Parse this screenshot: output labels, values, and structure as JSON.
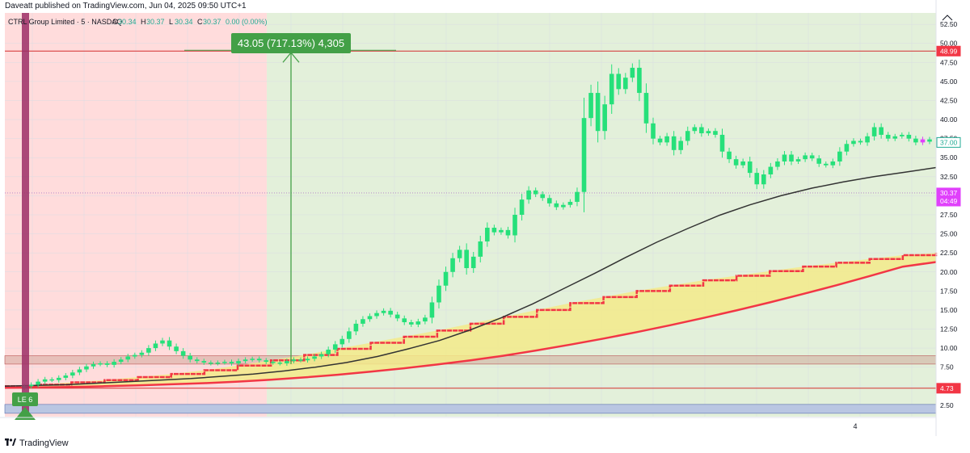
{
  "header": {
    "published": "Daveatt published on TradingView.com, Jun 04, 2025 09:50 UTC+1"
  },
  "footer": {
    "logo_icon": "tradingview-logo-icon",
    "brand": "TradingView"
  },
  "chart_data": {
    "type": "candlestick",
    "symbol_title": "CTRL Group Limited · 5 · NASDAQ",
    "ohlc_legend": {
      "O": "30.34",
      "H": "30.37",
      "L": "30.34",
      "C": "30.37",
      "change": "0.00 (0.00%)"
    },
    "y_axis": {
      "min": 1.0,
      "max": 54.0,
      "ticks": [
        "2.50",
        "5.00",
        "7.50",
        "10.00",
        "12.50",
        "15.00",
        "17.50",
        "20.00",
        "22.50",
        "25.00",
        "27.50",
        "30.00",
        "32.50",
        "35.00",
        "37.50",
        "40.00",
        "42.50",
        "45.00",
        "47.50",
        "50.00",
        "52.50"
      ]
    },
    "x_axis": {
      "labels": [
        "4"
      ]
    },
    "price_labels": [
      {
        "text": "48.99",
        "value": 48.99,
        "color": "#f23645"
      },
      {
        "text": "37.00",
        "value": 37.0,
        "color": "#ffffff",
        "border": "#22ab94",
        "text_color": "#22ab94"
      },
      {
        "text": "30.37",
        "value": 30.37,
        "color": "#e040fb"
      },
      {
        "text": "04:49",
        "value": 29.3,
        "color": "#e040fb"
      },
      {
        "text": "4.73",
        "value": 4.73,
        "color": "#f23645"
      }
    ],
    "measure_label": "43.05 (717.13%) 4,305",
    "entry_label": "LE 6",
    "colors": {
      "up": "#26e07a",
      "down": "#26e07a",
      "magenta": "#e040fb",
      "bg_red": "#ffdcdc",
      "bg_green": "#e3f0da",
      "ema": "#333333",
      "ribbon_fill": "#f3ea8a",
      "ribbon_edge": "#f23645"
    },
    "zones": [
      {
        "name": "resistance-line",
        "value": 48.99
      },
      {
        "name": "support-band-top",
        "value": 9.0
      },
      {
        "name": "support-band-bottom",
        "value": 7.9
      },
      {
        "name": "stop-line",
        "value": 4.73
      }
    ],
    "closes": [
      5.0,
      5.2,
      5.6,
      5.9,
      5.8,
      6.1,
      6.4,
      6.8,
      7.2,
      7.6,
      7.9,
      8.0,
      7.8,
      8.2,
      8.5,
      8.9,
      9.1,
      9.4,
      10.0,
      10.6,
      11.0,
      10.2,
      9.6,
      9.0,
      8.5,
      8.3,
      8.1,
      8.0,
      8.1,
      8.2,
      8.0,
      8.3,
      8.5,
      8.6,
      8.4,
      8.2,
      8.1,
      8.0,
      8.3,
      8.5,
      8.4,
      8.6,
      8.9,
      9.2,
      9.8,
      10.5,
      11.2,
      12.2,
      13.2,
      13.8,
      14.2,
      14.6,
      14.9,
      14.4,
      13.9,
      13.4,
      13.1,
      13.5,
      14.0,
      16.0,
      18.2,
      20.0,
      21.8,
      22.9,
      20.5,
      22.0,
      24.0,
      25.8,
      25.2,
      25.5,
      24.8,
      27.5,
      29.5,
      30.7,
      30.2,
      29.7,
      29.0,
      28.5,
      28.8,
      29.2,
      30.5,
      40.2,
      43.5,
      38.5,
      42.0,
      46.0,
      44.0,
      45.5,
      46.8,
      43.5,
      39.5,
      37.5,
      37.0,
      37.8,
      36.0,
      37.2,
      38.5,
      39.0,
      38.2,
      38.5,
      38.0,
      35.8,
      34.8,
      34.0,
      34.5,
      33.0,
      31.5,
      32.8,
      33.8,
      34.5,
      35.4,
      34.5,
      34.8,
      35.3,
      34.9,
      34.2,
      34.0,
      34.5,
      35.8,
      36.8,
      37.2,
      37.0,
      37.8,
      39.0,
      38.0,
      37.5,
      37.8,
      38.0,
      37.5,
      37.0,
      37.4,
      37.1
    ],
    "ema_values": [
      5.0,
      5.1,
      5.2,
      5.4,
      5.6,
      5.8,
      6.0,
      6.3,
      6.6,
      7.0,
      7.5,
      8.1,
      8.9,
      9.9,
      11.0,
      12.4,
      14.0,
      15.8,
      17.8,
      19.8,
      21.9,
      23.9,
      25.7,
      27.4,
      28.8,
      30.0,
      31.0,
      31.8,
      32.5,
      33.1,
      33.7
    ],
    "ribbon_upper": [
      5.0,
      5.2,
      5.5,
      5.8,
      6.2,
      6.6,
      7.1,
      7.7,
      8.4,
      9.1,
      9.9,
      10.7,
      11.5,
      12.3,
      13.2,
      14.1,
      15.0,
      15.9,
      16.7,
      17.5,
      18.2,
      18.9,
      19.5,
      20.1,
      20.7,
      21.2,
      21.7,
      22.2,
      22.5
    ],
    "ribbon_lower": [
      4.8,
      4.85,
      4.9,
      5.0,
      5.1,
      5.25,
      5.4,
      5.6,
      5.85,
      6.15,
      6.5,
      6.9,
      7.35,
      7.85,
      8.4,
      9.0,
      9.7,
      10.45,
      11.25,
      12.1,
      13.0,
      13.95,
      14.95,
      16.0,
      17.1,
      18.25,
      19.45,
      20.7,
      21.3
    ]
  }
}
